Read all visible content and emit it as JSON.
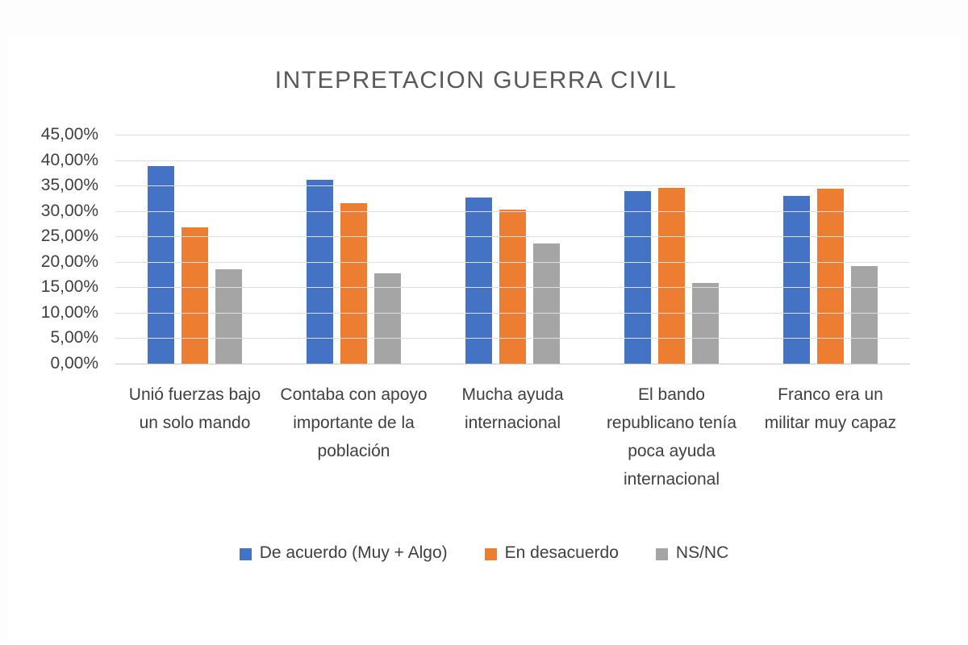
{
  "title": "INTEPRETACION GUERRA CIVIL",
  "colors": {
    "agree": "#4472C4",
    "disagree": "#ED7D31",
    "nsnc": "#A5A5A5",
    "gridline": "#DEDEDE",
    "baseline": "#C9C9C9",
    "title_text": "#595959",
    "label_text": "#404040",
    "background": "#FFFFFF"
  },
  "chart_data": {
    "type": "bar",
    "title": "INTEPRETACION GUERRA CIVIL",
    "categories": [
      "Unió fuerzas bajo un solo mando",
      "Contaba con apoyo importante de la población",
      "Mucha ayuda internacional",
      "El bando republicano tenía poca ayuda internacional",
      "Franco era un militar muy capaz"
    ],
    "series": [
      {
        "name": "De acuerdo (Muy + Algo)",
        "color_key": "agree",
        "values": [
          38.9,
          36.1,
          32.7,
          33.9,
          33.0
        ]
      },
      {
        "name": "En desacuerdo",
        "color_key": "disagree",
        "values": [
          26.8,
          31.5,
          30.2,
          34.6,
          34.4
        ]
      },
      {
        "name": "NS/NC",
        "color_key": "nsnc",
        "values": [
          18.6,
          17.8,
          23.6,
          15.8,
          19.2
        ]
      }
    ],
    "ylabel": "",
    "xlabel": "",
    "ylim": [
      0,
      45
    ],
    "ytick_step": 5,
    "ytick_labels": [
      "45,00%",
      "40,00%",
      "35,00%",
      "30,00%",
      "25,00%",
      "20,00%",
      "15,00%",
      "10,00%",
      "5,00%",
      "0,00%"
    ],
    "grid": true,
    "legend_position": "bottom"
  }
}
